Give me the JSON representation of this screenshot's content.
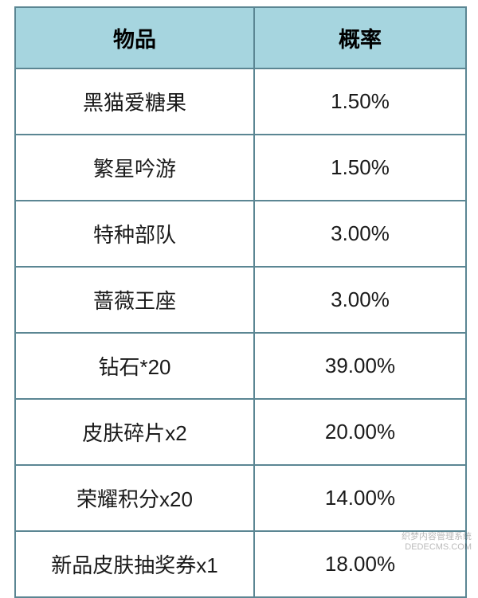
{
  "table": {
    "type": "table",
    "background_color": "#ffffff",
    "header_bg": "#a6d5df",
    "border_color": "#5b8693",
    "border_width": 2,
    "text_color": "#1a1a1a",
    "header_text_color": "#000000",
    "header_fontsize": 27,
    "cell_fontsize": 26,
    "font_family": "Microsoft YaHei",
    "col_widths_pct": [
      53,
      47
    ],
    "columns": [
      "物品",
      "概率"
    ],
    "rows": [
      [
        "黑猫爱糖果",
        "1.50%"
      ],
      [
        "繁星吟游",
        "1.50%"
      ],
      [
        "特种部队",
        "3.00%"
      ],
      [
        "蔷薇王座",
        "3.00%"
      ],
      [
        "钻石*20",
        "39.00%"
      ],
      [
        "皮肤碎片x2",
        "20.00%"
      ],
      [
        "荣耀积分x20",
        "14.00%"
      ],
      [
        "新品皮肤抽奖券x1",
        "18.00%"
      ]
    ]
  },
  "watermark": {
    "line1": "织梦内容管理系统",
    "line2": "DEDECMS.COM",
    "color": "rgba(0,0,0,0.28)",
    "fontsize": 11
  }
}
